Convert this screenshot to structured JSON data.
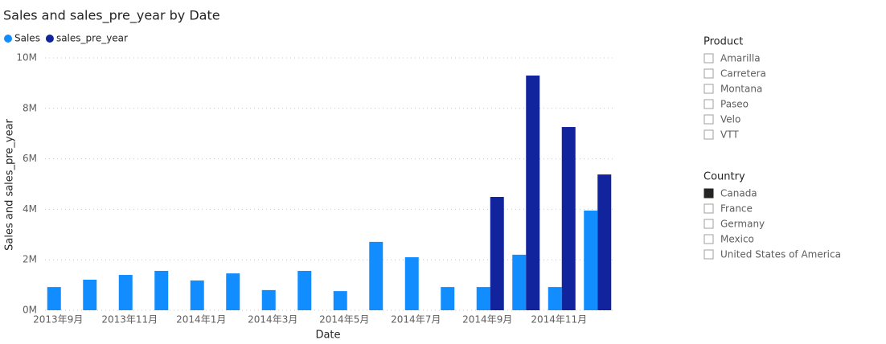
{
  "chart_data": {
    "type": "grouped-bar",
    "title": "Sales and sales_pre_year by Date",
    "x_label": "Date",
    "y_label": "Sales and sales_pre_year",
    "categories": [
      "2013年9月",
      null,
      "2013年11月",
      null,
      "2014年1月",
      null,
      "2014年3月",
      null,
      "2014年5月",
      null,
      "2014年7月",
      null,
      "2014年9月",
      null,
      "2014年11月",
      null
    ],
    "series": [
      {
        "name": "Sales",
        "color": "#118dff",
        "values": [
          920000,
          1210000,
          1400000,
          1560000,
          1180000,
          1460000,
          800000,
          1560000,
          760000,
          2710000,
          2100000,
          920000,
          920000,
          2200000,
          920000,
          3950000
        ]
      },
      {
        "name": "sales_pre_year",
        "color": "#12239e",
        "values": [
          null,
          null,
          null,
          null,
          null,
          null,
          null,
          null,
          null,
          null,
          null,
          null,
          4490000,
          9300000,
          7260000,
          5380000
        ]
      }
    ],
    "ylim": [
      0,
      10000000
    ],
    "yticks": [
      {
        "value": 0,
        "label": "0M"
      },
      {
        "value": 2000000,
        "label": "2M"
      },
      {
        "value": 4000000,
        "label": "4M"
      },
      {
        "value": 6000000,
        "label": "6M"
      },
      {
        "value": 8000000,
        "label": "8M"
      },
      {
        "value": 10000000,
        "label": "10M"
      }
    ],
    "grid": true
  },
  "slicers": [
    {
      "title": "Product",
      "items": [
        {
          "label": "Amarilla",
          "checked": false
        },
        {
          "label": "Carretera",
          "checked": false
        },
        {
          "label": "Montana",
          "checked": false
        },
        {
          "label": "Paseo",
          "checked": false
        },
        {
          "label": "Velo",
          "checked": false
        },
        {
          "label": "VTT",
          "checked": false
        }
      ]
    },
    {
      "title": "Country",
      "items": [
        {
          "label": "Canada",
          "checked": true
        },
        {
          "label": "France",
          "checked": false
        },
        {
          "label": "Germany",
          "checked": false
        },
        {
          "label": "Mexico",
          "checked": false
        },
        {
          "label": "United States of America",
          "checked": false
        }
      ]
    }
  ]
}
